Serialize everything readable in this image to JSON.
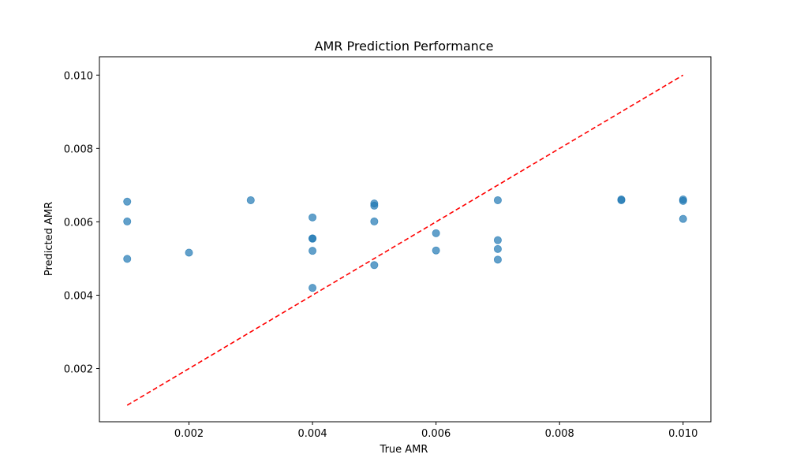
{
  "chart_data": {
    "type": "scatter",
    "title": "AMR Prediction Performance",
    "xlabel": "True AMR",
    "ylabel": "Predicted AMR",
    "xlim": [
      0.00055,
      0.01045
    ],
    "ylim": [
      0.00055,
      0.0105
    ],
    "xticks": [
      0.002,
      0.004,
      0.006,
      0.008,
      0.01
    ],
    "yticks": [
      0.002,
      0.004,
      0.006,
      0.008,
      0.01
    ],
    "xtick_labels": [
      "0.002",
      "0.004",
      "0.006",
      "0.008",
      "0.010"
    ],
    "ytick_labels": [
      "0.002",
      "0.004",
      "0.006",
      "0.008",
      "0.010"
    ],
    "grid": false,
    "point_color": "#1f77b4",
    "point_alpha": 0.7,
    "reference_line": {
      "style": "dashed",
      "color": "#ff0000",
      "points": [
        [
          0.001,
          0.001
        ],
        [
          0.01,
          0.01
        ]
      ]
    },
    "series": [
      {
        "x": [
          0.001,
          0.001,
          0.001,
          0.002,
          0.003,
          0.004,
          0.004,
          0.004,
          0.004,
          0.004,
          0.005,
          0.005,
          0.005,
          0.005,
          0.006,
          0.006,
          0.007,
          0.007,
          0.007,
          0.007,
          0.009,
          0.009,
          0.01,
          0.01,
          0.01
        ],
        "y": [
          0.00655,
          0.00601,
          0.00499,
          0.00516,
          0.00659,
          0.00612,
          0.00555,
          0.00554,
          0.00521,
          0.0042,
          0.0065,
          0.00644,
          0.00601,
          0.00482,
          0.00569,
          0.00522,
          0.00659,
          0.0055,
          0.00526,
          0.00497,
          0.00661,
          0.00659,
          0.00661,
          0.00657,
          0.00608
        ]
      }
    ]
  }
}
